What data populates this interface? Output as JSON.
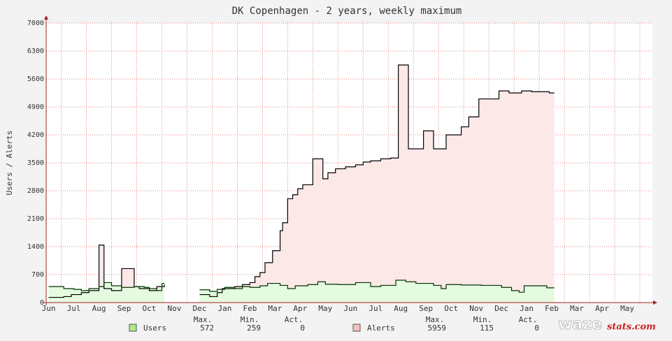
{
  "chart_data": {
    "type": "line",
    "title": "DK Copenhagen - 2 years, weekly maximum",
    "ylabel": "Users / Alerts",
    "xlim": [
      -0.1,
      24
    ],
    "ylim": [
      0,
      7000
    ],
    "yticks": [
      0,
      700,
      1400,
      2100,
      2800,
      3500,
      4200,
      4900,
      5600,
      6300,
      7000
    ],
    "xticks": [
      {
        "value": 0,
        "label": "Jun"
      },
      {
        "value": 1,
        "label": "Jul"
      },
      {
        "value": 2,
        "label": "Aug"
      },
      {
        "value": 3,
        "label": "Sep"
      },
      {
        "value": 4,
        "label": "Oct"
      },
      {
        "value": 5,
        "label": "Nov"
      },
      {
        "value": 6,
        "label": "Dec"
      },
      {
        "value": 7,
        "label": "Jan"
      },
      {
        "value": 8,
        "label": "Feb"
      },
      {
        "value": 9,
        "label": "Mar"
      },
      {
        "value": 10,
        "label": "Apr"
      },
      {
        "value": 11,
        "label": "May"
      },
      {
        "value": 12,
        "label": "Jun"
      },
      {
        "value": 13,
        "label": "Jul"
      },
      {
        "value": 14,
        "label": "Aug"
      },
      {
        "value": 15,
        "label": "Sep"
      },
      {
        "value": 16,
        "label": "Oct"
      },
      {
        "value": 17,
        "label": "Nov"
      },
      {
        "value": 18,
        "label": "Dec"
      },
      {
        "value": 19,
        "label": "Jan"
      },
      {
        "value": 20,
        "label": "Feb"
      },
      {
        "value": 21,
        "label": "Mar"
      },
      {
        "value": 22,
        "label": "Apr"
      },
      {
        "value": 23,
        "label": "May"
      }
    ],
    "grid": true,
    "step": true,
    "legend_headers": [
      "Max.",
      "Min.",
      "Act."
    ],
    "series": [
      {
        "name": "Alerts",
        "color": "#000000",
        "fill": "#fde8e8",
        "swatch": "#f4c0c0",
        "stats": [
          5959,
          115,
          0
        ],
        "x": [
          0,
          0.6,
          0.9,
          1.3,
          1.6,
          2.0,
          2.2,
          2.5,
          2.9,
          3.4,
          3.6,
          4.0,
          4.3,
          4.6,
          5.0,
          6.0,
          6.4,
          6.7,
          6.9,
          7.4,
          7.7,
          8.0,
          8.2,
          8.4,
          8.6,
          8.9,
          9.2,
          9.3,
          9.5,
          9.7,
          9.9,
          10.1,
          10.5,
          10.9,
          11.1,
          11.4,
          11.8,
          12.2,
          12.5,
          12.8,
          13.2,
          13.6,
          13.9,
          14.3,
          14.9,
          15.3,
          15.8,
          16.4,
          16.7,
          17.1,
          17.9,
          18.3,
          18.8,
          19.2,
          19.9,
          20.1
        ],
        "values": [
          130,
          150,
          200,
          250,
          300,
          1440,
          350,
          300,
          850,
          400,
          350,
          300,
          400,
          450,
          null,
          200,
          150,
          250,
          350,
          400,
          450,
          500,
          650,
          750,
          1000,
          1300,
          1800,
          2000,
          2600,
          2700,
          2850,
          2950,
          3600,
          3100,
          3250,
          3350,
          3400,
          3450,
          3520,
          3550,
          3600,
          3620,
          5950,
          3850,
          4300,
          3850,
          4200,
          4400,
          4650,
          5100,
          5300,
          5250,
          5300,
          5280,
          5250,
          5250
        ]
      },
      {
        "name": "Users",
        "color": "#003300",
        "fill": "#e4fbe0",
        "swatch": "#b0e890",
        "stats": [
          572,
          259,
          0
        ],
        "x": [
          0,
          0.6,
          1.0,
          1.3,
          1.6,
          2.0,
          2.2,
          2.5,
          2.9,
          3.4,
          3.8,
          4.0,
          4.3,
          4.5,
          4.6,
          5.0,
          6.0,
          6.4,
          6.7,
          7.0,
          7.4,
          7.7,
          8.0,
          8.4,
          8.7,
          9.2,
          9.5,
          9.8,
          10.3,
          10.7,
          11.0,
          11.5,
          12.2,
          12.8,
          13.2,
          13.8,
          14.2,
          14.6,
          15.3,
          15.6,
          15.8,
          16.4,
          17.2,
          18.0,
          18.4,
          18.7,
          18.9,
          19.8,
          20.1
        ],
        "values": [
          400,
          350,
          330,
          300,
          350,
          400,
          500,
          420,
          380,
          400,
          380,
          350,
          300,
          480,
          480,
          null,
          320,
          280,
          330,
          380,
          350,
          400,
          380,
          420,
          480,
          430,
          350,
          420,
          450,
          520,
          460,
          450,
          500,
          400,
          430,
          560,
          520,
          480,
          430,
          350,
          450,
          440,
          430,
          380,
          300,
          259,
          420,
          370,
          370
        ]
      }
    ],
    "logo": [
      "waze",
      "stats.com"
    ]
  }
}
